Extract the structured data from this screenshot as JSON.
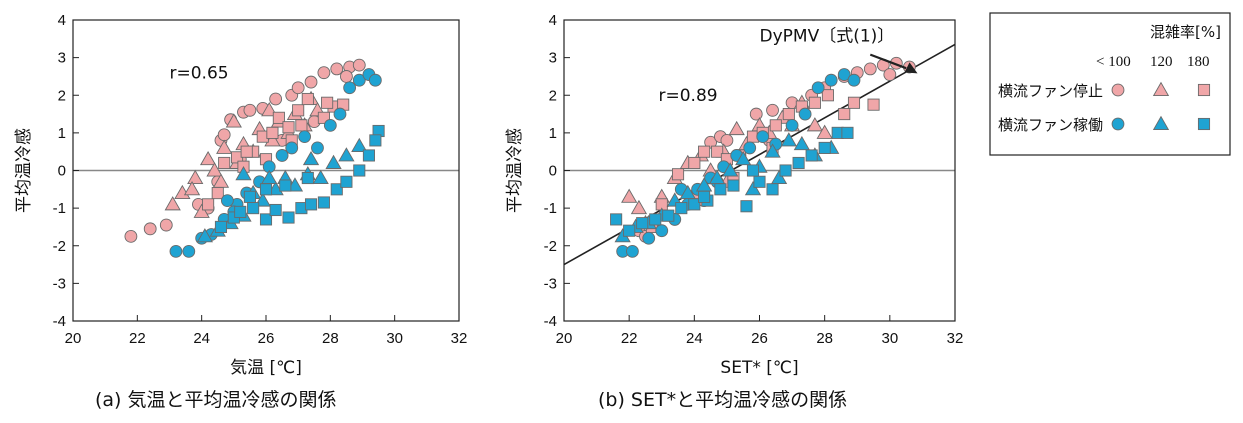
{
  "colors": {
    "fan_off": "#f0a6a8",
    "fan_on": "#1fa3d2",
    "marker_edge": "#6a6a6a",
    "axis": "#222222",
    "zero_line": "#888888",
    "regression": "#222222"
  },
  "legend": {
    "title": "混雑率[%]",
    "col_labels": [
      "< 100",
      "120",
      "180"
    ],
    "rows": [
      {
        "label": "横流ファン停止",
        "color_key": "fan_off"
      },
      {
        "label": "横流ファン稼働",
        "color_key": "fan_on"
      }
    ],
    "marker_shapes": [
      "circle",
      "triangle",
      "square"
    ]
  },
  "chart_data": [
    {
      "type": "scatter",
      "caption": "(a) 気温と平均温冷感の関係",
      "xlabel": "気温 [℃]",
      "ylabel": "平均温冷感",
      "xlim": [
        20,
        32
      ],
      "ylim": [
        -4,
        4
      ],
      "xticks": [
        20,
        22,
        24,
        26,
        28,
        30,
        32
      ],
      "yticks": [
        -4,
        -3,
        -2,
        -1,
        0,
        1,
        2,
        3,
        4
      ],
      "annotation": "r=0.65",
      "zero_line": true,
      "series": [
        {
          "fan": "off",
          "shape": "circle",
          "points": [
            [
              21.8,
              -1.75
            ],
            [
              22.4,
              -1.55
            ],
            [
              22.9,
              -1.45
            ],
            [
              24.6,
              0.8
            ],
            [
              24.7,
              0.95
            ],
            [
              24.9,
              1.35
            ],
            [
              25.3,
              1.55
            ],
            [
              25.9,
              1.65
            ],
            [
              25.5,
              1.6
            ],
            [
              26.3,
              1.9
            ],
            [
              26.8,
              2.0
            ],
            [
              27.0,
              2.2
            ],
            [
              27.4,
              2.35
            ],
            [
              27.8,
              2.6
            ],
            [
              28.2,
              2.7
            ],
            [
              28.6,
              2.75
            ],
            [
              28.9,
              2.8
            ],
            [
              28.5,
              2.5
            ],
            [
              24.2,
              -1.0
            ],
            [
              24.5,
              -0.3
            ],
            [
              25.2,
              0.3
            ],
            [
              26.5,
              0.8
            ],
            [
              27.5,
              1.3
            ],
            [
              23.9,
              -0.9
            ]
          ]
        },
        {
          "fan": "off",
          "shape": "triangle",
          "points": [
            [
              23.1,
              -0.9
            ],
            [
              23.4,
              -0.6
            ],
            [
              23.8,
              -0.2
            ],
            [
              24.2,
              0.3
            ],
            [
              24.4,
              0.0
            ],
            [
              24.7,
              0.6
            ],
            [
              25.0,
              1.3
            ],
            [
              25.3,
              0.7
            ],
            [
              25.6,
              0.5
            ],
            [
              25.8,
              1.1
            ],
            [
              26.1,
              1.6
            ],
            [
              26.4,
              1.3
            ],
            [
              26.7,
              1.0
            ],
            [
              26.9,
              1.5
            ],
            [
              27.2,
              1.2
            ],
            [
              27.4,
              1.9
            ],
            [
              27.6,
              1.6
            ],
            [
              24.6,
              -0.3
            ],
            [
              25.1,
              0.2
            ],
            [
              23.7,
              -0.5
            ],
            [
              26.2,
              0.8
            ],
            [
              24.0,
              -1.1
            ]
          ]
        },
        {
          "fan": "off",
          "shape": "square",
          "points": [
            [
              24.7,
              0.2
            ],
            [
              25.1,
              0.35
            ],
            [
              25.3,
              0.1
            ],
            [
              25.6,
              0.5
            ],
            [
              25.9,
              0.9
            ],
            [
              26.2,
              1.0
            ],
            [
              26.4,
              1.4
            ],
            [
              26.7,
              1.15
            ],
            [
              27.0,
              1.6
            ],
            [
              27.3,
              1.9
            ],
            [
              27.1,
              1.2
            ],
            [
              27.8,
              1.4
            ],
            [
              28.1,
              1.7
            ],
            [
              28.4,
              1.75
            ],
            [
              27.9,
              1.8
            ],
            [
              25.4,
              0.5
            ],
            [
              26.8,
              0.8
            ],
            [
              24.5,
              -0.6
            ],
            [
              24.2,
              -0.9
            ],
            [
              26.0,
              0.3
            ]
          ]
        },
        {
          "fan": "on",
          "shape": "circle",
          "points": [
            [
              23.2,
              -2.15
            ],
            [
              23.6,
              -2.15
            ],
            [
              24.0,
              -1.8
            ],
            [
              24.3,
              -1.7
            ],
            [
              24.7,
              -1.3
            ],
            [
              25.1,
              -0.9
            ],
            [
              25.4,
              -0.6
            ],
            [
              25.8,
              -0.3
            ],
            [
              26.1,
              0.1
            ],
            [
              26.5,
              0.4
            ],
            [
              26.8,
              0.6
            ],
            [
              27.2,
              0.9
            ],
            [
              27.6,
              0.6
            ],
            [
              28.0,
              1.2
            ],
            [
              28.3,
              1.5
            ],
            [
              28.6,
              2.2
            ],
            [
              28.9,
              2.4
            ],
            [
              29.2,
              2.55
            ],
            [
              29.4,
              2.4
            ],
            [
              25.0,
              -1.1
            ],
            [
              24.8,
              -0.8
            ]
          ]
        },
        {
          "fan": "on",
          "shape": "triangle",
          "points": [
            [
              24.1,
              -1.75
            ],
            [
              24.5,
              -1.6
            ],
            [
              24.9,
              -1.4
            ],
            [
              25.3,
              -1.2
            ],
            [
              25.6,
              -0.6
            ],
            [
              25.9,
              -0.8
            ],
            [
              26.3,
              -0.5
            ],
            [
              26.6,
              -0.2
            ],
            [
              26.9,
              -0.4
            ],
            [
              27.3,
              -0.1
            ],
            [
              27.7,
              -0.2
            ],
            [
              28.1,
              0.2
            ],
            [
              28.5,
              0.4
            ],
            [
              28.9,
              0.65
            ],
            [
              27.4,
              0.3
            ],
            [
              26.1,
              -0.2
            ],
            [
              25.3,
              -0.1
            ]
          ]
        },
        {
          "fan": "on",
          "shape": "square",
          "points": [
            [
              24.6,
              -1.5
            ],
            [
              25.0,
              -1.25
            ],
            [
              25.2,
              -1.1
            ],
            [
              25.6,
              -1.0
            ],
            [
              26.0,
              -1.3
            ],
            [
              26.3,
              -1.05
            ],
            [
              26.7,
              -1.25
            ],
            [
              27.1,
              -1.0
            ],
            [
              27.4,
              -0.9
            ],
            [
              27.8,
              -0.85
            ],
            [
              28.2,
              -0.5
            ],
            [
              28.5,
              -0.3
            ],
            [
              28.9,
              0.0
            ],
            [
              29.2,
              0.4
            ],
            [
              29.5,
              1.05
            ],
            [
              29.4,
              0.8
            ],
            [
              26.0,
              -0.5
            ],
            [
              25.5,
              -0.7
            ],
            [
              26.6,
              -0.4
            ],
            [
              27.3,
              -0.2
            ]
          ]
        }
      ]
    },
    {
      "type": "scatter",
      "caption": "(b) SET*と平均温冷感の関係",
      "xlabel": "SET* [℃]",
      "ylabel": "平均温冷感",
      "xlim": [
        20,
        32
      ],
      "ylim": [
        -4,
        4
      ],
      "xticks": [
        20,
        22,
        24,
        26,
        28,
        30,
        32
      ],
      "yticks": [
        -4,
        -3,
        -2,
        -1,
        0,
        1,
        2,
        3,
        4
      ],
      "annotation": "r=0.89",
      "regression_label": "DyPMV〔式(1)〕",
      "regression_line": [
        [
          20,
          -2.5
        ],
        [
          32,
          3.35
        ]
      ],
      "zero_line": true,
      "series": [
        {
          "fan": "off",
          "shape": "circle",
          "points": [
            [
              22.3,
              -1.6
            ],
            [
              22.5,
              -1.75
            ],
            [
              24.5,
              0.75
            ],
            [
              24.8,
              0.9
            ],
            [
              25.0,
              0.8
            ],
            [
              25.9,
              1.5
            ],
            [
              26.4,
              1.6
            ],
            [
              27.0,
              1.8
            ],
            [
              27.6,
              2.0
            ],
            [
              28.0,
              2.2
            ],
            [
              28.6,
              2.5
            ],
            [
              29.0,
              2.6
            ],
            [
              29.4,
              2.7
            ],
            [
              29.8,
              2.8
            ],
            [
              30.2,
              2.85
            ],
            [
              30.6,
              2.75
            ],
            [
              30.0,
              2.55
            ],
            [
              24.3,
              -0.8
            ],
            [
              25.4,
              0.4
            ],
            [
              26.3,
              0.8
            ]
          ]
        },
        {
          "fan": "off",
          "shape": "triangle",
          "points": [
            [
              22.0,
              -0.7
            ],
            [
              22.3,
              -1.0
            ],
            [
              23.0,
              -0.7
            ],
            [
              23.4,
              -0.2
            ],
            [
              23.8,
              0.2
            ],
            [
              24.2,
              0.4
            ],
            [
              24.5,
              0.0
            ],
            [
              24.9,
              0.5
            ],
            [
              25.3,
              1.1
            ],
            [
              25.6,
              0.7
            ],
            [
              26.0,
              1.2
            ],
            [
              26.3,
              1.0
            ],
            [
              26.7,
              1.4
            ],
            [
              27.0,
              1.2
            ],
            [
              27.3,
              1.8
            ],
            [
              27.7,
              1.2
            ],
            [
              28.0,
              1.0
            ],
            [
              24.0,
              -0.6
            ],
            [
              25.0,
              -0.3
            ],
            [
              22.5,
              -1.4
            ]
          ]
        },
        {
          "fan": "off",
          "shape": "square",
          "points": [
            [
              23.5,
              -0.1
            ],
            [
              24.0,
              0.2
            ],
            [
              24.3,
              0.5
            ],
            [
              24.7,
              0.5
            ],
            [
              25.0,
              0.3
            ],
            [
              25.4,
              0.4
            ],
            [
              25.8,
              0.9
            ],
            [
              26.1,
              1.0
            ],
            [
              26.5,
              1.2
            ],
            [
              26.9,
              1.5
            ],
            [
              27.3,
              1.7
            ],
            [
              27.7,
              1.8
            ],
            [
              28.1,
              2.0
            ],
            [
              28.6,
              1.5
            ],
            [
              28.9,
              1.8
            ],
            [
              29.5,
              1.75
            ],
            [
              26.4,
              0.6
            ],
            [
              23.0,
              -0.9
            ],
            [
              22.7,
              -1.5
            ],
            [
              25.2,
              -0.2
            ]
          ]
        },
        {
          "fan": "on",
          "shape": "circle",
          "points": [
            [
              21.8,
              -2.15
            ],
            [
              22.1,
              -2.15
            ],
            [
              22.6,
              -1.8
            ],
            [
              23.0,
              -1.6
            ],
            [
              23.4,
              -1.3
            ],
            [
              23.8,
              -0.9
            ],
            [
              24.1,
              -0.5
            ],
            [
              24.5,
              -0.2
            ],
            [
              24.9,
              0.1
            ],
            [
              25.3,
              0.4
            ],
            [
              25.7,
              0.6
            ],
            [
              26.1,
              0.9
            ],
            [
              26.5,
              0.7
            ],
            [
              27.0,
              1.2
            ],
            [
              27.4,
              1.5
            ],
            [
              27.8,
              2.2
            ],
            [
              28.2,
              2.4
            ],
            [
              28.6,
              2.55
            ],
            [
              28.9,
              2.4
            ],
            [
              24.7,
              -0.3
            ],
            [
              23.6,
              -0.5
            ]
          ]
        },
        {
          "fan": "on",
          "shape": "triangle",
          "points": [
            [
              21.8,
              -1.75
            ],
            [
              22.2,
              -1.5
            ],
            [
              22.6,
              -1.4
            ],
            [
              23.0,
              -1.2
            ],
            [
              23.4,
              -0.8
            ],
            [
              23.8,
              -0.6
            ],
            [
              24.3,
              -0.4
            ],
            [
              24.7,
              -0.2
            ],
            [
              25.1,
              0.0
            ],
            [
              25.5,
              0.3
            ],
            [
              26.0,
              0.1
            ],
            [
              26.4,
              0.5
            ],
            [
              26.9,
              0.8
            ],
            [
              27.3,
              0.7
            ],
            [
              27.7,
              0.4
            ],
            [
              28.2,
              0.6
            ],
            [
              26.6,
              -0.2
            ],
            [
              25.8,
              -0.5
            ]
          ]
        },
        {
          "fan": "on",
          "shape": "square",
          "points": [
            [
              21.6,
              -1.3
            ],
            [
              22.0,
              -1.6
            ],
            [
              22.4,
              -1.4
            ],
            [
              22.8,
              -1.3
            ],
            [
              23.2,
              -1.2
            ],
            [
              23.6,
              -1.0
            ],
            [
              24.0,
              -0.9
            ],
            [
              24.4,
              -0.8
            ],
            [
              24.8,
              -0.5
            ],
            [
              25.2,
              -0.4
            ],
            [
              25.6,
              -0.95
            ],
            [
              26.0,
              -0.3
            ],
            [
              26.4,
              -0.5
            ],
            [
              26.8,
              0.0
            ],
            [
              27.2,
              0.2
            ],
            [
              27.6,
              0.4
            ],
            [
              28.0,
              0.6
            ],
            [
              28.4,
              1.0
            ],
            [
              28.7,
              1.0
            ],
            [
              24.3,
              -0.7
            ],
            [
              25.8,
              0.0
            ]
          ]
        }
      ]
    }
  ]
}
